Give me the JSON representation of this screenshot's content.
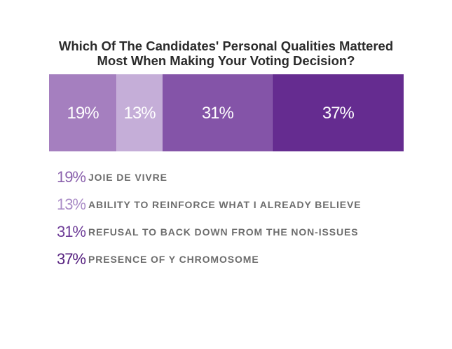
{
  "chart_data": {
    "type": "bar",
    "orientation": "horizontal-stacked",
    "title": [
      "Which Of The Candidates' Personal Qualities Mattered",
      "Most When Making Your Voting Decision?"
    ],
    "categories": [
      "JOIE DE VIVRE",
      "ABILITY TO REINFORCE WHAT I ALREADY BELIEVE",
      "REFUSAL TO BACK DOWN FROM THE NON-ISSUES",
      "PRESENCE OF Y CHROMOSOME"
    ],
    "values": [
      19,
      13,
      31,
      37
    ],
    "value_labels": [
      "19%",
      "13%",
      "31%",
      "37%"
    ],
    "colors": [
      "#a57fbf",
      "#c5aed8",
      "#8454a8",
      "#652c90"
    ],
    "legend_text_colors": [
      "#8b62ad",
      "#a98bc6",
      "#6e3d98",
      "#55207f"
    ],
    "legend_placement": "below",
    "grid": false
  }
}
